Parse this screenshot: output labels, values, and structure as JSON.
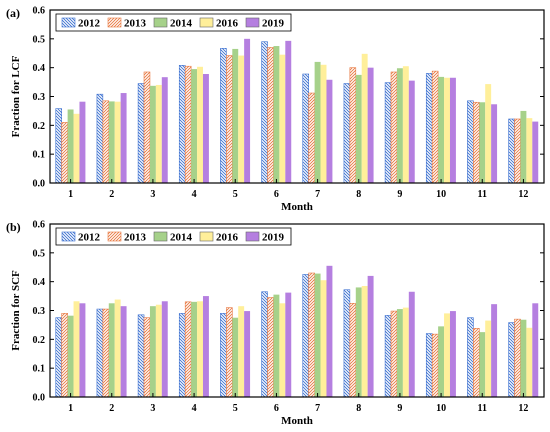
{
  "chart_data": [
    {
      "type": "bar",
      "panel_label": "(a)",
      "xlabel": "Month",
      "ylabel": "Fraction for LCF",
      "ylim": [
        0,
        0.6
      ],
      "yticks": [
        "0.0",
        "0.1",
        "0.2",
        "0.3",
        "0.4",
        "0.5",
        "0.6"
      ],
      "categories": [
        "1",
        "2",
        "3",
        "4",
        "5",
        "6",
        "7",
        "8",
        "9",
        "10",
        "11",
        "12"
      ],
      "legend_position": "top-left",
      "grid": false,
      "series": [
        {
          "name": "2012",
          "color": "#7ea6e0",
          "pattern": "hatch-back",
          "values": [
            0.258,
            0.308,
            0.345,
            0.408,
            0.467,
            0.49,
            0.378,
            0.345,
            0.348,
            0.38,
            0.285,
            0.222
          ]
        },
        {
          "name": "2013",
          "color": "#f4a582",
          "pattern": "hatch-forward",
          "values": [
            0.21,
            0.285,
            0.385,
            0.405,
            0.442,
            0.47,
            0.312,
            0.4,
            0.385,
            0.388,
            0.28,
            0.222
          ]
        },
        {
          "name": "2014",
          "color": "#a6d18a",
          "pattern": "solid",
          "values": [
            0.255,
            0.283,
            0.337,
            0.395,
            0.465,
            0.475,
            0.42,
            0.375,
            0.398,
            0.368,
            0.28,
            0.25
          ]
        },
        {
          "name": "2016",
          "color": "#ffef9a",
          "pattern": "solid",
          "values": [
            0.24,
            0.282,
            0.34,
            0.403,
            0.442,
            0.445,
            0.41,
            0.448,
            0.405,
            0.365,
            0.343,
            0.225
          ]
        },
        {
          "name": "2019",
          "color": "#b57fe0",
          "pattern": "solid",
          "values": [
            0.282,
            0.312,
            0.367,
            0.378,
            0.5,
            0.493,
            0.358,
            0.4,
            0.355,
            0.365,
            0.273,
            0.213
          ]
        }
      ]
    },
    {
      "type": "bar",
      "panel_label": "(b)",
      "xlabel": "Month",
      "ylabel": "Fraction for SCF",
      "ylim": [
        0,
        0.6
      ],
      "yticks": [
        "0.0",
        "0.1",
        "0.2",
        "0.3",
        "0.4",
        "0.5",
        "0.6"
      ],
      "categories": [
        "1",
        "2",
        "3",
        "4",
        "5",
        "6",
        "7",
        "8",
        "9",
        "10",
        "11",
        "12"
      ],
      "legend_position": "top-left",
      "grid": false,
      "series": [
        {
          "name": "2012",
          "color": "#7ea6e0",
          "pattern": "hatch-back",
          "values": [
            0.275,
            0.305,
            0.285,
            0.29,
            0.29,
            0.365,
            0.425,
            0.372,
            0.283,
            0.22,
            0.275,
            0.258
          ]
        },
        {
          "name": "2013",
          "color": "#f4a582",
          "pattern": "hatch-forward",
          "values": [
            0.29,
            0.305,
            0.275,
            0.33,
            0.31,
            0.345,
            0.43,
            0.325,
            0.298,
            0.218,
            0.238,
            0.27
          ]
        },
        {
          "name": "2014",
          "color": "#a6d18a",
          "pattern": "solid",
          "values": [
            0.282,
            0.325,
            0.315,
            0.33,
            0.275,
            0.355,
            0.428,
            0.38,
            0.305,
            0.245,
            0.225,
            0.268
          ]
        },
        {
          "name": "2016",
          "color": "#ffef9a",
          "pattern": "solid",
          "values": [
            0.332,
            0.338,
            0.32,
            0.332,
            0.315,
            0.325,
            0.405,
            0.385,
            0.31,
            0.29,
            0.265,
            0.24
          ]
        },
        {
          "name": "2019",
          "color": "#b57fe0",
          "pattern": "solid",
          "values": [
            0.325,
            0.315,
            0.332,
            0.35,
            0.298,
            0.362,
            0.455,
            0.42,
            0.365,
            0.298,
            0.322,
            0.325
          ]
        }
      ]
    }
  ]
}
